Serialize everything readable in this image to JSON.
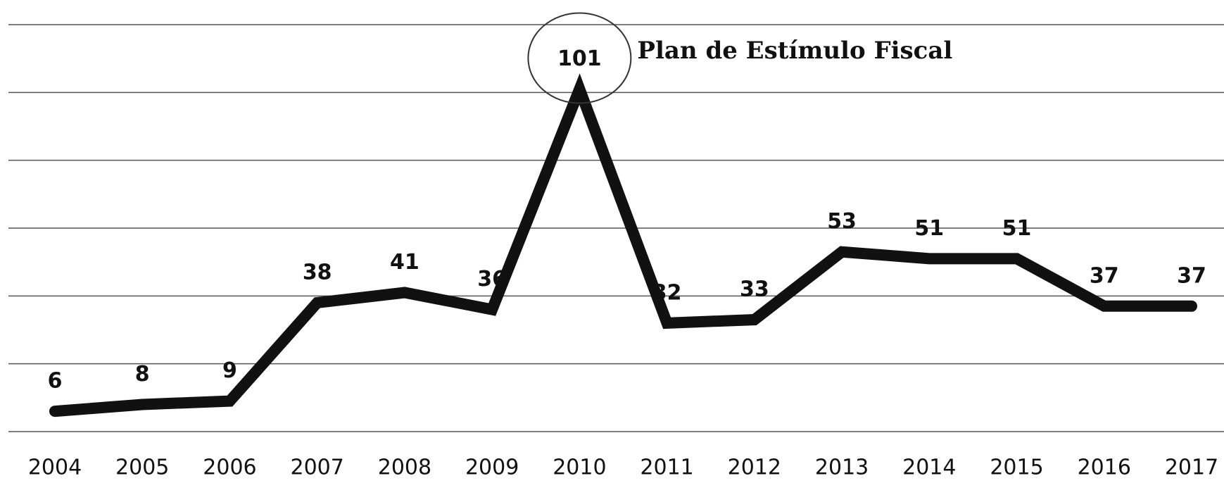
{
  "chart_data": {
    "type": "line",
    "categories": [
      "2004",
      "2005",
      "2006",
      "2007",
      "2008",
      "2009",
      "2010",
      "2011",
      "2012",
      "2013",
      "2014",
      "2015",
      "2016",
      "2017"
    ],
    "series": [
      {
        "name": null,
        "color": "#111111",
        "values": [
          6,
          8,
          9,
          38,
          41,
          36,
          101,
          32,
          33,
          53,
          51,
          51,
          37,
          37
        ]
      }
    ],
    "annotation": "Plan de Estímulo Fiscal",
    "ylim": [
      0,
      120
    ],
    "yticks": [
      0,
      20,
      40,
      60,
      80,
      100,
      120
    ],
    "grid": true
  }
}
